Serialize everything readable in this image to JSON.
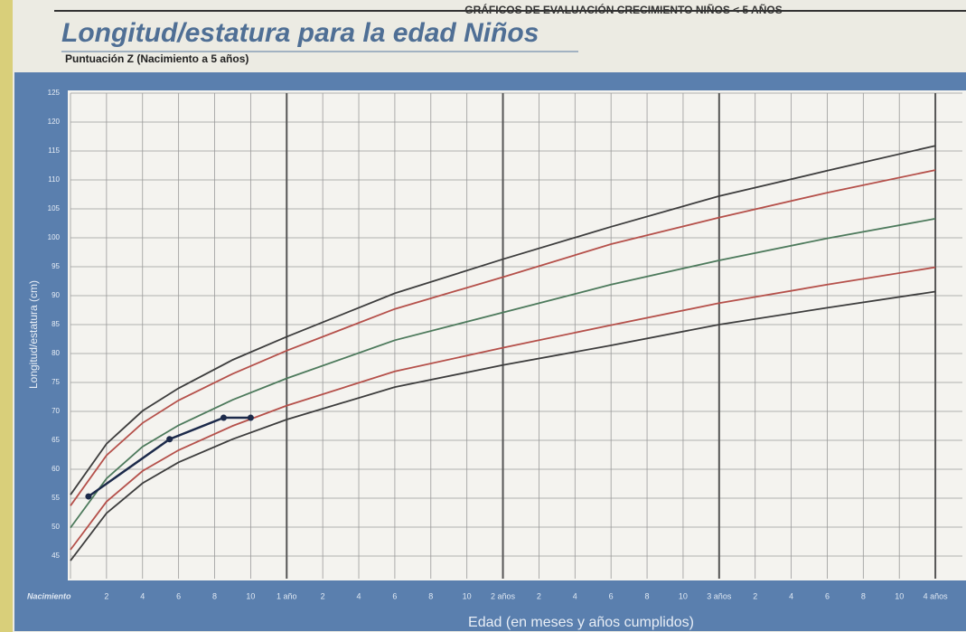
{
  "chart_data": {
    "type": "line",
    "header": "GRÁFICOS DE EVALUACIÓN CRECIMIENTO NIÑOS < 5 AÑOS",
    "title": "Longitud/estatura para la edad Niños",
    "subtitle": "Puntuación Z (Nacimiento a 5 años)",
    "y_label": "Longitud/estatura (cm)",
    "x_label": "Edad (en meses y años cumplidos)",
    "x": [
      0,
      2,
      4,
      6,
      9,
      12,
      18,
      24,
      30,
      36,
      42,
      48
    ],
    "series": [
      {
        "color": "#3d3d3d",
        "values": [
          55.6,
          64.4,
          70.1,
          74.0,
          78.9,
          82.9,
          90.4,
          96.3,
          101.9,
          107.2,
          111.6,
          115.9
        ]
      },
      {
        "color": "#b5504a",
        "values": [
          53.7,
          62.4,
          68.0,
          71.9,
          76.5,
          80.5,
          87.7,
          93.2,
          98.9,
          103.5,
          107.8,
          111.7
        ]
      },
      {
        "color": "#4d7a5c",
        "values": [
          49.9,
          58.4,
          63.9,
          67.6,
          72.0,
          75.7,
          82.3,
          87.1,
          91.9,
          96.1,
          99.9,
          103.3
        ]
      },
      {
        "color": "#b5504a",
        "values": [
          46.1,
          54.4,
          59.7,
          63.3,
          67.5,
          71.0,
          76.9,
          81.0,
          84.9,
          88.7,
          91.9,
          94.9
        ]
      },
      {
        "color": "#3d3d3d",
        "values": [
          44.2,
          52.4,
          57.6,
          61.2,
          65.2,
          68.6,
          74.2,
          78.0,
          81.4,
          85.0,
          87.9,
          90.7
        ]
      }
    ],
    "plotted": {
      "x": [
        1,
        5.5,
        8.5,
        10
      ],
      "values": [
        55.3,
        65.2,
        68.9,
        68.9
      ],
      "color": "#1c2a4a"
    },
    "xlim": [
      0,
      49.5
    ],
    "xticks": [
      {
        "value": 0,
        "label": "Nacimiento"
      },
      2,
      4,
      6,
      8,
      10,
      {
        "value": 12,
        "label": "1 año"
      },
      {
        "value": 14,
        "label": "2"
      },
      {
        "value": 16,
        "label": "4"
      },
      {
        "value": 18,
        "label": "6"
      },
      {
        "value": 20,
        "label": "8"
      },
      {
        "value": 22,
        "label": "10"
      },
      {
        "value": 24,
        "label": "2 años"
      },
      {
        "value": 26,
        "label": "2"
      },
      {
        "value": 28,
        "label": "4"
      },
      {
        "value": 30,
        "label": "6"
      },
      {
        "value": 32,
        "label": "8"
      },
      {
        "value": 34,
        "label": "10"
      },
      {
        "value": 36,
        "label": "3 años"
      },
      {
        "value": 38,
        "label": "2"
      },
      {
        "value": 40,
        "label": "4"
      },
      {
        "value": 42,
        "label": "6"
      },
      {
        "value": 44,
        "label": "8"
      },
      {
        "value": 46,
        "label": "10"
      },
      {
        "value": 48,
        "label": "4 años"
      }
    ],
    "ylim": [
      45,
      125
    ],
    "yticks": [
      45,
      50,
      55,
      60,
      65,
      70,
      75,
      80,
      85,
      90,
      95,
      100,
      105,
      110,
      115,
      120,
      125
    ],
    "grid": true
  }
}
